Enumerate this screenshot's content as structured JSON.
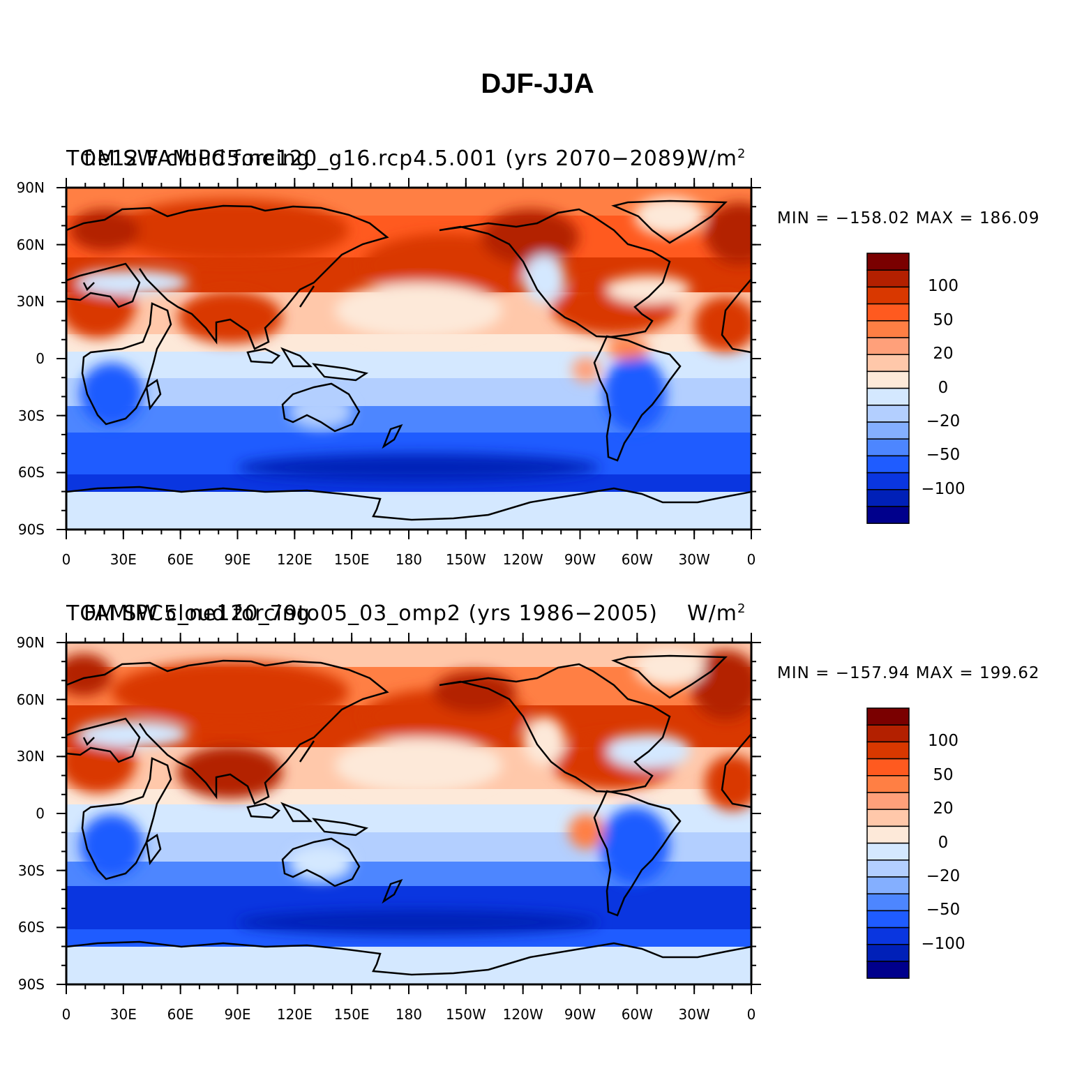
{
  "title": "DJF-JJA",
  "x_tick_labels": [
    "0",
    "30E",
    "60E",
    "90E",
    "120E",
    "150E",
    "180",
    "150W",
    "120W",
    "90W",
    "60W",
    "30W",
    "0"
  ],
  "y_tick_labels": [
    "90N",
    "60N",
    "30N",
    "0",
    "30S",
    "60S",
    "90S"
  ],
  "colorbar": {
    "labels": [
      "100",
      "50",
      "20",
      "0",
      "−20",
      "−50",
      "−100"
    ],
    "colors": [
      "#7a0000",
      "#b32000",
      "#d93800",
      "#ff5a1f",
      "#ff7f44",
      "#ffa07a",
      "#ffc8aa",
      "#fde9d9",
      "#d4e8ff",
      "#b3cfff",
      "#84afff",
      "#4d86ff",
      "#1f5cff",
      "#0a36e0",
      "#0020b8",
      "#00008c"
    ]
  },
  "panels": [
    {
      "header_left": "TOM SW cloud forcing",
      "header_case": "f.e12.FAMIPC5.ne120_g16.rcp4.5.001 (yrs 2070−2089)",
      "header_units": "W/m",
      "units_sup": "2",
      "min_max": "MIN = −158.02  MAX = 186.09"
    },
    {
      "header_left": "TOM SW cloud forcing",
      "header_case": "FAMIPC5_ne120_79to05_03_omp2 (yrs 1986−2005)",
      "header_units": "W/m",
      "units_sup": "2",
      "min_max": "MIN = −157.94  MAX = 199.62"
    }
  ]
}
